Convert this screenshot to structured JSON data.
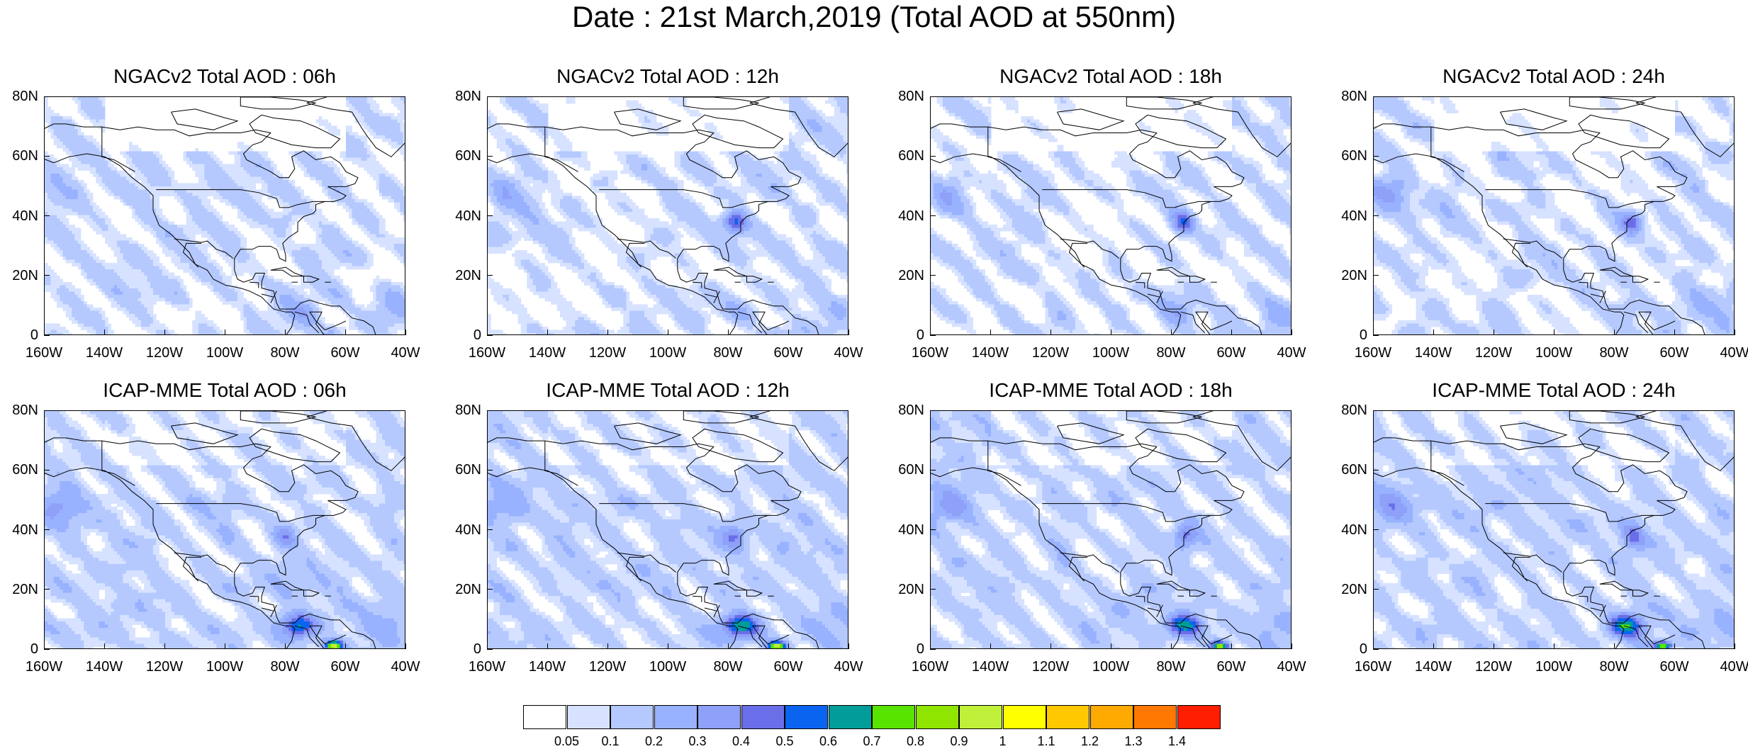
{
  "title": "Date : 21st March,2019 (Total AOD at 550nm)",
  "panels": [
    {
      "title": "NGACv2 Total AOD : 06h"
    },
    {
      "title": "NGACv2 Total AOD : 12h"
    },
    {
      "title": "NGACv2 Total AOD : 18h"
    },
    {
      "title": "NGACv2 Total AOD : 24h"
    },
    {
      "title": "ICAP-MME Total AOD : 06h"
    },
    {
      "title": "ICAP-MME Total AOD : 12h"
    },
    {
      "title": "ICAP-MME Total AOD : 18h"
    },
    {
      "title": "ICAP-MME Total AOD : 24h"
    }
  ],
  "axes": {
    "lat_ticks": [
      "80N",
      "60N",
      "40N",
      "20N",
      "0"
    ],
    "lon_ticks": [
      "160W",
      "140W",
      "120W",
      "100W",
      "80W",
      "60W",
      "40W"
    ]
  },
  "colorbar": {
    "labels": [
      "0.05",
      "0.1",
      "0.2",
      "0.3",
      "0.4",
      "0.5",
      "0.6",
      "0.7",
      "0.8",
      "0.9",
      "1",
      "1.1",
      "1.2",
      "1.3",
      "1.4"
    ],
    "colors": [
      "#ffffff",
      "#d6e2ff",
      "#b5c9ff",
      "#98b2ff",
      "#8ea0f8",
      "#6a6ee8",
      "#0a64f0",
      "#009d9a",
      "#59e400",
      "#8fe400",
      "#c1f03a",
      "#ffff00",
      "#ffc800",
      "#ffaa00",
      "#ff7800",
      "#ff1e00"
    ]
  }
}
